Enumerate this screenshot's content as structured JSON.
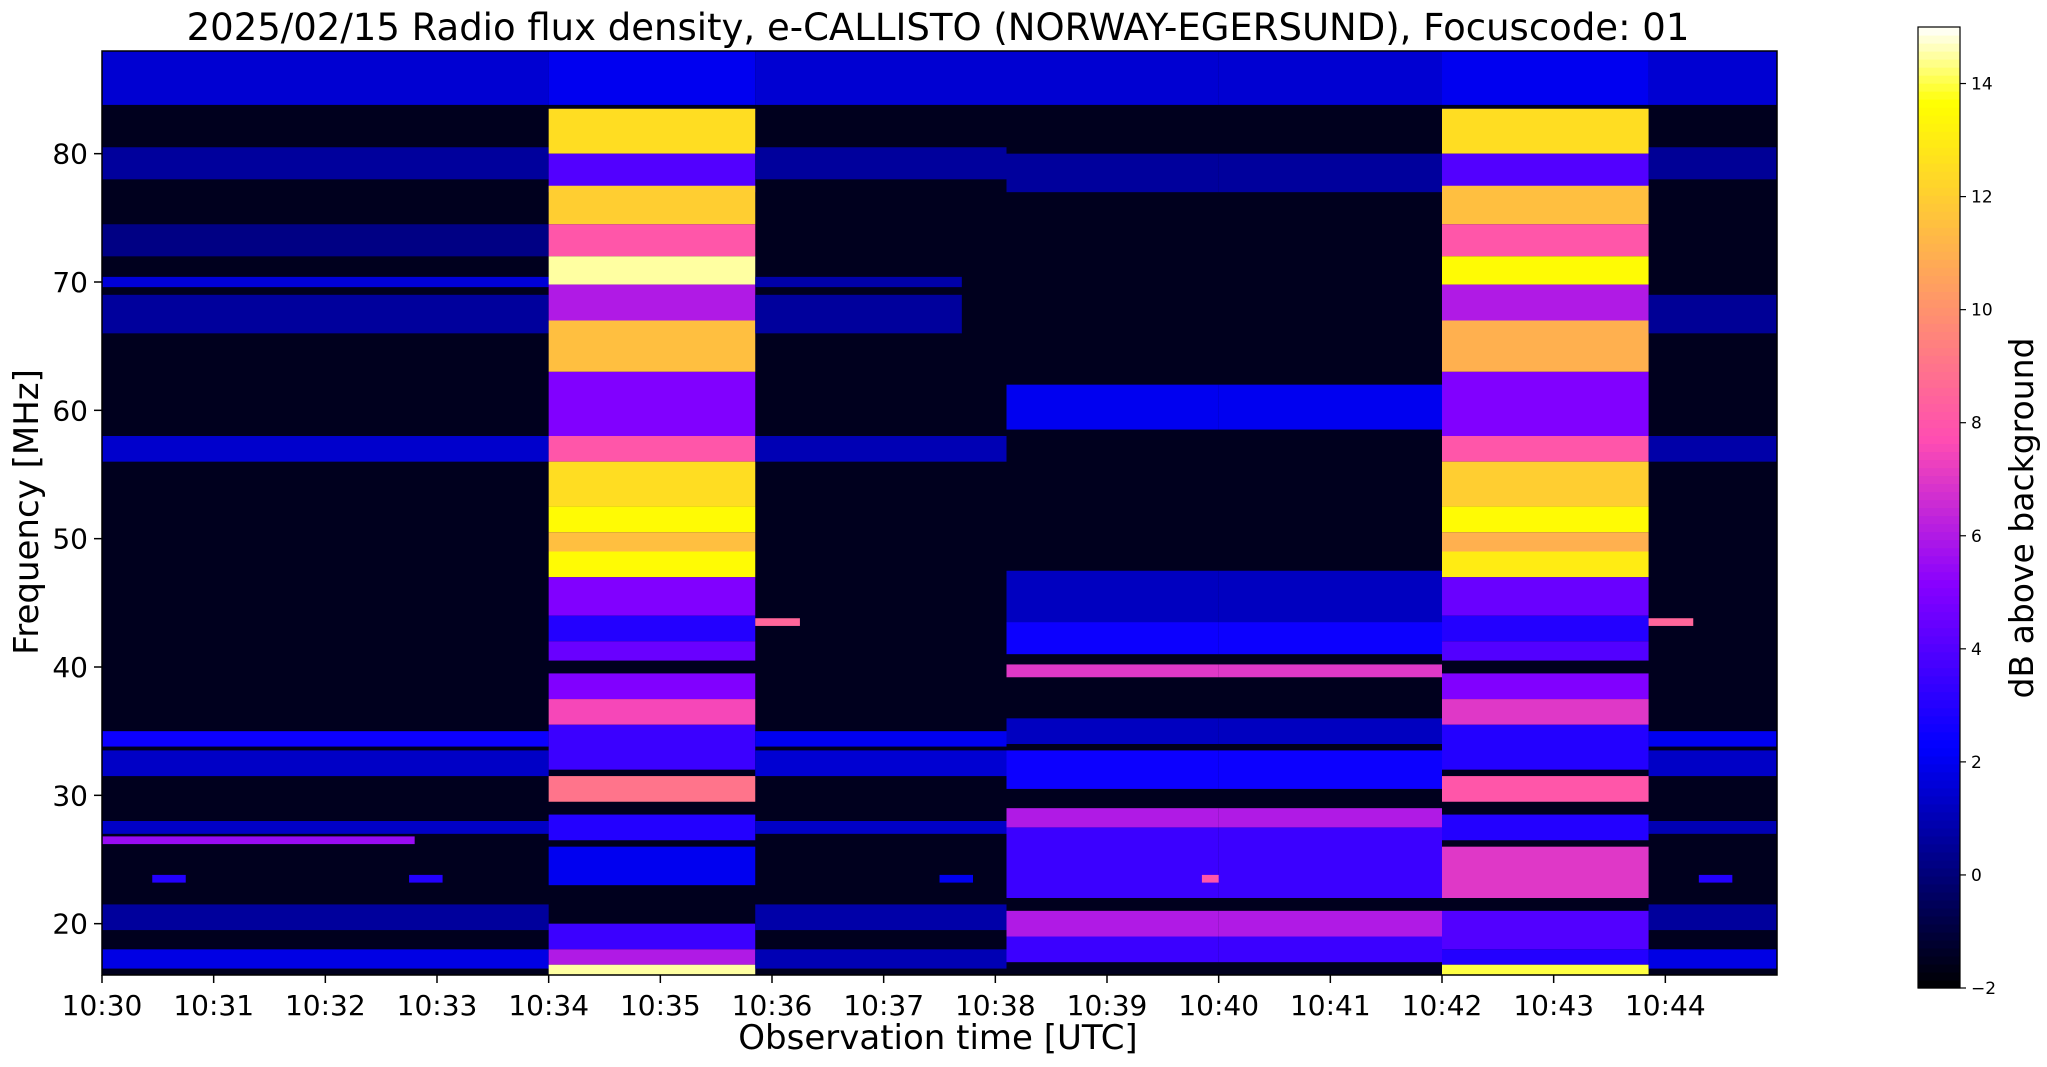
{
  "chart_data": {
    "type": "heatmap",
    "title": "2025/02/15  Radio flux density, e-CALLISTO (NORWAY-EGERSUND), Focuscode: 01",
    "xlabel": "Observation time [UTC]",
    "ylabel": "Frequency [MHz]",
    "colorbar_label": "dB above background",
    "colormap": "gnuplot2",
    "x_ticks": [
      "10:30",
      "10:31",
      "10:32",
      "10:33",
      "10:34",
      "10:35",
      "10:36",
      "10:37",
      "10:38",
      "10:39",
      "10:40",
      "10:41",
      "10:42",
      "10:43",
      "10:44"
    ],
    "x_range_minutes": [
      0,
      15
    ],
    "y_ticks": [
      20,
      30,
      40,
      50,
      60,
      70,
      80
    ],
    "ylim": [
      16,
      88
    ],
    "colorbar_ticks": [
      -2,
      0,
      2,
      4,
      6,
      8,
      10,
      12,
      14
    ],
    "colorbar_range": [
      -2,
      15
    ],
    "background_db": -1.5,
    "segments": [
      {
        "t0": 0.0,
        "t1": 4.0,
        "bands": [
          {
            "f0": 83.8,
            "f1": 88.0,
            "db": 1.5
          },
          {
            "f0": 78.0,
            "f1": 80.5,
            "db": 0.6
          },
          {
            "f0": 72.0,
            "f1": 74.5,
            "db": 0.2
          },
          {
            "f0": 69.6,
            "f1": 70.4,
            "db": 1.6
          },
          {
            "f0": 66.0,
            "f1": 69.0,
            "db": 0.6
          },
          {
            "f0": 56.0,
            "f1": 58.0,
            "db": 1.4
          },
          {
            "f0": 33.8,
            "f1": 35.0,
            "db": 2.5
          },
          {
            "f0": 31.5,
            "f1": 33.5,
            "db": 1.3
          },
          {
            "f0": 27.0,
            "f1": 28.0,
            "db": 1.3
          },
          {
            "f0": 26.2,
            "f1": 26.8,
            "db": 5.5,
            "t1": 2.8
          },
          {
            "f0": 23.2,
            "f1": 23.8,
            "db": 3.0,
            "t0": 0.45,
            "t1": 0.75
          },
          {
            "f0": 23.2,
            "f1": 23.8,
            "db": 3.0,
            "t0": 2.75,
            "t1": 3.05
          },
          {
            "f0": 19.5,
            "f1": 21.5,
            "db": 0.6
          },
          {
            "f0": 16.5,
            "f1": 18.0,
            "db": 1.8
          }
        ]
      },
      {
        "t0": 4.0,
        "t1": 5.85,
        "bands": [
          {
            "f0": 83.8,
            "f1": 88.0,
            "db": 2.0
          },
          {
            "f0": 80.0,
            "f1": 83.5,
            "db": 12.5
          },
          {
            "f0": 77.0,
            "f1": 80.0,
            "db": 4.0
          },
          {
            "f0": 74.5,
            "f1": 77.5,
            "db": 12.0
          },
          {
            "f0": 72.0,
            "f1": 74.5,
            "db": 8.0
          },
          {
            "f0": 69.8,
            "f1": 72.0,
            "db": 14.5
          },
          {
            "f0": 67.0,
            "f1": 69.8,
            "db": 6.0
          },
          {
            "f0": 63.0,
            "f1": 67.0,
            "db": 11.5
          },
          {
            "f0": 58.0,
            "f1": 63.0,
            "db": 5.0
          },
          {
            "f0": 56.0,
            "f1": 58.0,
            "db": 8.0
          },
          {
            "f0": 52.5,
            "f1": 56.0,
            "db": 12.5
          },
          {
            "f0": 50.5,
            "f1": 52.5,
            "db": 13.5
          },
          {
            "f0": 49.0,
            "f1": 50.5,
            "db": 11.5
          },
          {
            "f0": 47.0,
            "f1": 49.0,
            "db": 13.5
          },
          {
            "f0": 44.0,
            "f1": 47.0,
            "db": 5.0
          },
          {
            "f0": 42.0,
            "f1": 44.0,
            "db": 3.0
          },
          {
            "f0": 40.5,
            "f1": 42.0,
            "db": 4.5
          },
          {
            "f0": 37.5,
            "f1": 39.5,
            "db": 5.0
          },
          {
            "f0": 35.5,
            "f1": 37.5,
            "db": 7.5
          },
          {
            "f0": 32.0,
            "f1": 35.5,
            "db": 3.5
          },
          {
            "f0": 29.5,
            "f1": 31.5,
            "db": 9.0
          },
          {
            "f0": 26.5,
            "f1": 28.5,
            "db": 3.0
          },
          {
            "f0": 23.0,
            "f1": 26.0,
            "db": 2.0
          },
          {
            "f0": 18.0,
            "f1": 20.0,
            "db": 3.5
          },
          {
            "f0": 16.8,
            "f1": 18.0,
            "db": 6.0
          },
          {
            "f0": 16.0,
            "f1": 16.8,
            "db": 14.5
          }
        ]
      },
      {
        "t0": 5.85,
        "t1": 6.25,
        "bands": [
          {
            "f0": 43.2,
            "f1": 43.8,
            "db": 8.5
          }
        ]
      },
      {
        "t0": 5.85,
        "t1": 8.1,
        "bands": [
          {
            "f0": 83.8,
            "f1": 88.0,
            "db": 1.5
          },
          {
            "f0": 78.0,
            "f1": 80.5,
            "db": 0.6
          },
          {
            "f0": 69.6,
            "f1": 70.4,
            "db": 0.8,
            "t1": 7.7
          },
          {
            "f0": 66.0,
            "f1": 69.0,
            "db": 0.6,
            "t1": 7.7
          },
          {
            "f0": 56.0,
            "f1": 58.0,
            "db": 1.0
          },
          {
            "f0": 33.8,
            "f1": 35.0,
            "db": 2.0
          },
          {
            "f0": 31.5,
            "f1": 33.5,
            "db": 1.5
          },
          {
            "f0": 27.0,
            "f1": 28.0,
            "db": 1.3
          },
          {
            "f0": 23.2,
            "f1": 23.8,
            "db": 2.0,
            "t0": 7.5,
            "t1": 7.8
          },
          {
            "f0": 19.5,
            "f1": 21.5,
            "db": 0.8
          },
          {
            "f0": 16.5,
            "f1": 18.0,
            "db": 1.0
          }
        ]
      },
      {
        "t0": 8.1,
        "t1": 10.0,
        "bands": [
          {
            "f0": 83.8,
            "f1": 88.0,
            "db": 1.5
          },
          {
            "f0": 77.0,
            "f1": 80.0,
            "db": 0.6
          },
          {
            "f0": 58.5,
            "f1": 62.0,
            "db": 2.0
          },
          {
            "f0": 43.5,
            "f1": 47.5,
            "db": 1.2
          },
          {
            "f0": 41.0,
            "f1": 43.5,
            "db": 2.5
          },
          {
            "f0": 39.2,
            "f1": 40.2,
            "db": 7.0
          },
          {
            "f0": 34.0,
            "f1": 36.0,
            "db": 1.2
          },
          {
            "f0": 30.5,
            "f1": 33.5,
            "db": 2.5
          },
          {
            "f0": 27.5,
            "f1": 29.0,
            "db": 6.0
          },
          {
            "f0": 22.0,
            "f1": 27.5,
            "db": 3.5
          },
          {
            "f0": 23.2,
            "f1": 23.8,
            "db": 8.0,
            "t0": 9.85,
            "t1": 10.05
          },
          {
            "f0": 19.0,
            "f1": 21.0,
            "db": 6.0
          },
          {
            "f0": 17.0,
            "f1": 19.0,
            "db": 3.5
          }
        ]
      },
      {
        "t0": 10.0,
        "t1": 12.0,
        "bands": [
          {
            "f0": 83.8,
            "f1": 88.0,
            "db": 1.5
          },
          {
            "f0": 77.0,
            "f1": 80.0,
            "db": 0.6
          },
          {
            "f0": 58.5,
            "f1": 62.0,
            "db": 2.0
          },
          {
            "f0": 43.5,
            "f1": 47.5,
            "db": 1.2
          },
          {
            "f0": 41.0,
            "f1": 43.5,
            "db": 2.5
          },
          {
            "f0": 39.2,
            "f1": 40.2,
            "db": 7.0
          },
          {
            "f0": 34.0,
            "f1": 36.0,
            "db": 1.2
          },
          {
            "f0": 30.5,
            "f1": 33.5,
            "db": 2.5
          },
          {
            "f0": 27.5,
            "f1": 29.0,
            "db": 6.0
          },
          {
            "f0": 22.0,
            "f1": 27.5,
            "db": 3.5
          },
          {
            "f0": 19.0,
            "f1": 21.0,
            "db": 6.0
          },
          {
            "f0": 17.0,
            "f1": 19.0,
            "db": 3.5
          }
        ]
      },
      {
        "t0": 12.0,
        "t1": 13.85,
        "bands": [
          {
            "f0": 83.8,
            "f1": 88.0,
            "db": 2.0
          },
          {
            "f0": 80.0,
            "f1": 83.5,
            "db": 12.5
          },
          {
            "f0": 77.0,
            "f1": 80.0,
            "db": 4.0
          },
          {
            "f0": 74.5,
            "f1": 77.5,
            "db": 11.5
          },
          {
            "f0": 72.0,
            "f1": 74.5,
            "db": 8.0
          },
          {
            "f0": 69.8,
            "f1": 72.0,
            "db": 13.5
          },
          {
            "f0": 67.0,
            "f1": 69.8,
            "db": 6.0
          },
          {
            "f0": 63.0,
            "f1": 67.0,
            "db": 11.0
          },
          {
            "f0": 58.0,
            "f1": 63.0,
            "db": 5.0
          },
          {
            "f0": 56.0,
            "f1": 58.0,
            "db": 8.0
          },
          {
            "f0": 52.5,
            "f1": 56.0,
            "db": 12.0
          },
          {
            "f0": 50.5,
            "f1": 52.5,
            "db": 13.5
          },
          {
            "f0": 49.0,
            "f1": 50.5,
            "db": 11.0
          },
          {
            "f0": 47.0,
            "f1": 49.0,
            "db": 13.0
          },
          {
            "f0": 44.0,
            "f1": 47.0,
            "db": 4.5
          },
          {
            "f0": 42.0,
            "f1": 44.0,
            "db": 3.0
          },
          {
            "f0": 40.5,
            "f1": 42.0,
            "db": 4.0
          },
          {
            "f0": 37.5,
            "f1": 39.5,
            "db": 5.0
          },
          {
            "f0": 35.5,
            "f1": 37.5,
            "db": 7.0
          },
          {
            "f0": 32.0,
            "f1": 35.5,
            "db": 3.0
          },
          {
            "f0": 29.5,
            "f1": 31.5,
            "db": 8.0
          },
          {
            "f0": 26.5,
            "f1": 28.5,
            "db": 3.0
          },
          {
            "f0": 22.0,
            "f1": 26.0,
            "db": 7.0
          },
          {
            "f0": 18.0,
            "f1": 21.0,
            "db": 4.0
          },
          {
            "f0": 16.8,
            "f1": 18.0,
            "db": 3.0
          },
          {
            "f0": 16.0,
            "f1": 16.8,
            "db": 14.0
          }
        ]
      },
      {
        "t0": 13.85,
        "t1": 14.25,
        "bands": [
          {
            "f0": 43.2,
            "f1": 43.8,
            "db": 8.5
          }
        ]
      },
      {
        "t0": 13.85,
        "t1": 15.0,
        "bands": [
          {
            "f0": 83.8,
            "f1": 88.0,
            "db": 1.5
          },
          {
            "f0": 78.0,
            "f1": 80.5,
            "db": 0.5
          },
          {
            "f0": 66.0,
            "f1": 69.0,
            "db": 0.5
          },
          {
            "f0": 56.0,
            "f1": 58.0,
            "db": 0.8
          },
          {
            "f0": 33.8,
            "f1": 35.0,
            "db": 2.0
          },
          {
            "f0": 31.5,
            "f1": 33.5,
            "db": 1.3
          },
          {
            "f0": 27.0,
            "f1": 28.0,
            "db": 1.0
          },
          {
            "f0": 23.2,
            "f1": 23.8,
            "db": 3.0,
            "t0": 14.3,
            "t1": 14.6
          },
          {
            "f0": 19.5,
            "f1": 21.5,
            "db": 0.6
          },
          {
            "f0": 16.5,
            "f1": 18.0,
            "db": 1.8
          }
        ]
      }
    ]
  }
}
